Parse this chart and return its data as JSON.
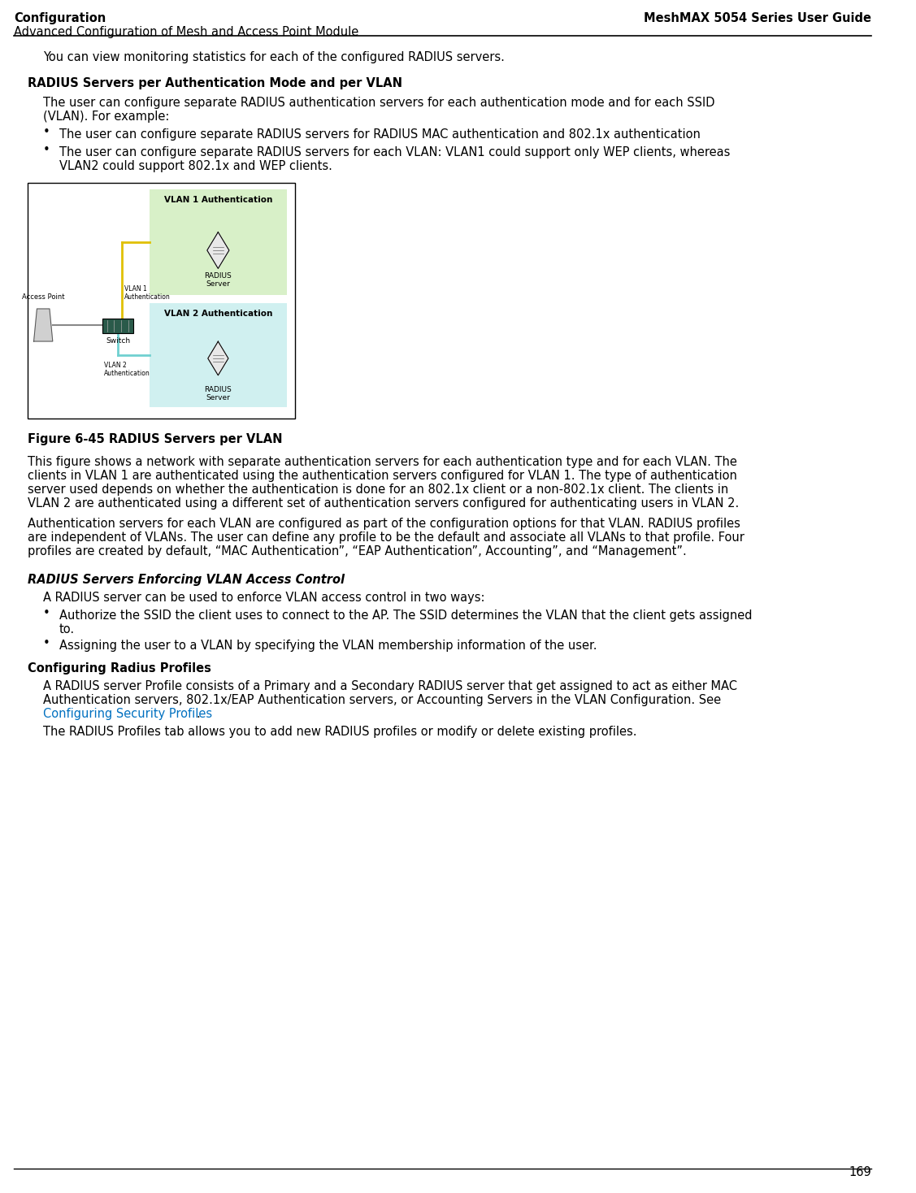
{
  "header_left_line1": "Configuration",
  "header_right_line1": "MeshMAX 5054 Series User Guide",
  "header_left_line2": "Advanced Configuration of Mesh and Access Point Module",
  "page_number": "169",
  "body_text": [
    {
      "type": "indent_para",
      "text": "You can view monitoring statistics for each of the configured RADIUS servers."
    },
    {
      "type": "heading_bold",
      "text": "RADIUS Servers per Authentication Mode and per VLAN"
    },
    {
      "type": "indent_para",
      "text": "The user can configure separate RADIUS authentication servers for each authentication mode and for each SSID (VLAN). For example:"
    },
    {
      "type": "bullet",
      "text": "The user can configure separate RADIUS servers for RADIUS MAC authentication and 802.1x authentication"
    },
    {
      "type": "bullet",
      "text": "The user can configure separate RADIUS servers for each VLAN: VLAN1 could support only WEP clients, whereas VLAN2 could support 802.1x and WEP clients."
    },
    {
      "type": "figure",
      "id": "fig645"
    },
    {
      "type": "figure_caption",
      "text": "Figure 6-45 RADIUS Servers per VLAN"
    },
    {
      "type": "para",
      "text": "This figure shows a network with separate authentication servers for each authentication type and for each VLAN. The clients in VLAN 1 are authenticated using the authentication servers configured for VLAN 1. The type of authentication server used depends on whether the authentication is done for an 802.1x client or a non-802.1x client. The clients in VLAN 2 are authenticated using a different set of authentication servers configured for authenticating users in VLAN 2."
    },
    {
      "type": "para",
      "text": "Authentication servers for each VLAN are configured as part of the configuration options for that VLAN. RADIUS profiles are independent of VLANs. The user can define any profile to be the default and associate all VLANs to that profile. Four profiles are created by default, “MAC Authentication”, “EAP Authentication”, Accounting”, and “Management”."
    },
    {
      "type": "heading_bold_italic",
      "text": "RADIUS Servers Enforcing VLAN Access Control"
    },
    {
      "type": "indent_para",
      "text": " A RADIUS server can be used to enforce VLAN access control in two ways:"
    },
    {
      "type": "bullet",
      "text": "Authorize the SSID the client uses to connect to the AP. The SSID determines the VLAN that the client gets assigned to."
    },
    {
      "type": "bullet",
      "text": "Assigning the user to a VLAN by specifying the VLAN membership information of the user."
    },
    {
      "type": "heading_bold",
      "text": "Configuring Radius Profiles"
    },
    {
      "type": "indent_para",
      "text": "A RADIUS server Profile consists of a Primary and a Secondary RADIUS server that get assigned to act as either MAC Authentication servers, 802.1x/EAP Authentication servers, or Accounting Servers in the VLAN Configuration. See "
    },
    {
      "type": "link_line",
      "text": "Configuring Security Profiles",
      "after": "."
    },
    {
      "type": "indent_para",
      "text": "The RADIUS Profiles tab allows you to add new RADIUS profiles or modify or delete existing profiles."
    }
  ],
  "bg_color": "#ffffff",
  "text_color": "#000000",
  "link_color": "#0070c0",
  "header_line_color": "#000000",
  "footer_line_color": "#000000",
  "vlan1_bg": "#d8f0c8",
  "vlan2_bg": "#d0f0f0",
  "figure_border": "#000000"
}
